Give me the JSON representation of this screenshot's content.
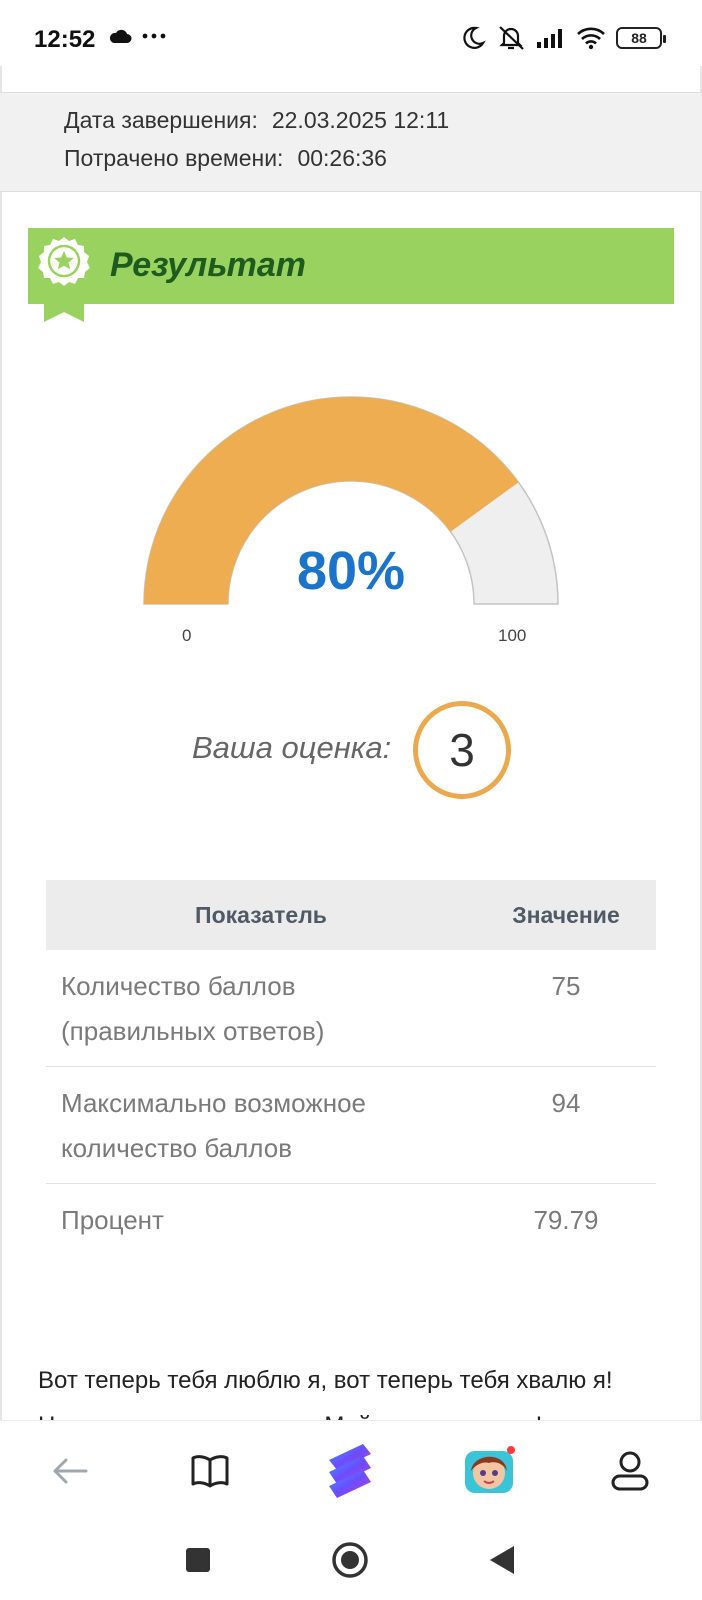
{
  "status_bar": {
    "time": "12:52",
    "battery": "88",
    "icons": [
      "cloud-icon",
      "more-dots-icon",
      "moon-icon",
      "alarm-off-icon",
      "signal-icon",
      "wifi-icon",
      "battery-icon"
    ]
  },
  "info": {
    "finished_label": "Дата завершения:",
    "finished_value": "22.03.2025 12:11",
    "spent_label": "Потрачено времени:",
    "spent_value": "00:26:36"
  },
  "result": {
    "title": "Результат",
    "icon": "award-icon",
    "accent": "#99d25e"
  },
  "gauge": {
    "percent": 80,
    "percent_label": "80%",
    "min_label": "0",
    "max_label": "100",
    "fill_color": "#eead50",
    "track_color": "#efefef"
  },
  "grade": {
    "label": "Ваша оценка:",
    "value": "3"
  },
  "table": {
    "headers": [
      "Показатель",
      "Значение"
    ],
    "rows": [
      {
        "name_line1": "Количество баллов",
        "name_line2": "(правильных ответов)",
        "value": "75"
      },
      {
        "name_line1": "Максимально возможное",
        "name_line2": "количество баллов",
        "value": "94"
      },
      {
        "name_line1": "Процент",
        "name_line2": "",
        "value": "79.79"
      }
    ]
  },
  "poem": {
    "line1": "Вот теперь тебя люблю я, вот теперь тебя хвалю я!",
    "line2": "Наконец-то ты, грязнуля, Мойдодыру угодил!"
  },
  "bottom_nav": {
    "items": [
      "back-arrow-icon",
      "book-icon",
      "app-logo-icon",
      "game-avatar-icon",
      "profile-icon"
    ]
  },
  "system_nav": [
    "recents-button",
    "home-button",
    "back-button"
  ]
}
